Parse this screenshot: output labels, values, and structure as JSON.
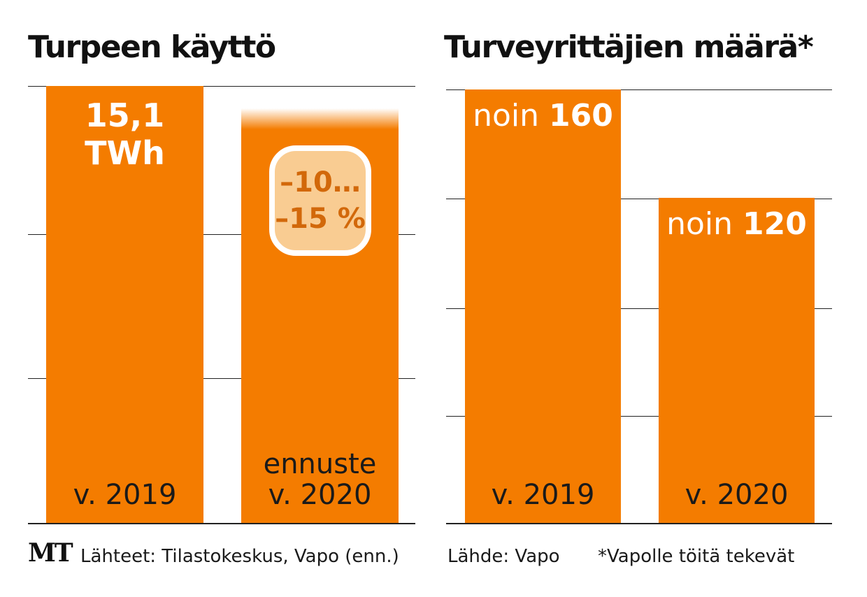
{
  "logo": "MT",
  "charts": [
    {
      "title": "Turpeen käyttö",
      "source": "Lähteet: Tilastokeskus, Vapo (enn.)"
    },
    {
      "title": "Turveyrittäjien määrä*",
      "source": "Lähde: Vapo",
      "footnote": "*Vapolle töitä tekevät"
    }
  ],
  "chart_data": [
    {
      "type": "bar",
      "title": "Turpeen käyttö",
      "categories": [
        "v. 2019",
        "ennuste v. 2020"
      ],
      "category_lines": [
        [
          "v. 2019"
        ],
        [
          "ennuste",
          "v. 2020"
        ]
      ],
      "values": [
        15.1,
        null
      ],
      "value_labels": [
        [
          "15,1",
          "TWh"
        ],
        null
      ],
      "annotations": [
        {
          "category": "ennuste v. 2020",
          "lines": [
            "–10…",
            "–15 %"
          ]
        }
      ],
      "unit": "TWh",
      "grid": true,
      "ymax": 15.1,
      "forecast_bar_fraction_of_2019": 0.9
    },
    {
      "type": "bar",
      "title": "Turveyrittäjien määrä*",
      "categories": [
        "v. 2019",
        "v. 2020"
      ],
      "values": [
        160,
        120
      ],
      "value_labels": [
        [
          "noin ",
          "160"
        ],
        [
          "noin ",
          "120"
        ]
      ],
      "grid": true,
      "ylim": [
        0,
        160
      ]
    }
  ],
  "colors": {
    "bar": "#f47c00",
    "badge_fill": "#f9cc92",
    "badge_text": "#d2680a",
    "text": "#1a1a1a"
  }
}
